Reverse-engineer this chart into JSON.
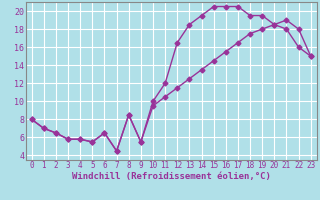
{
  "xlabel": "Windchill (Refroidissement éolien,°C)",
  "background_color": "#b0e0e8",
  "grid_color": "#ffffff",
  "line_color": "#993399",
  "marker": "D",
  "markersize": 2.5,
  "linewidth": 1.0,
  "xlim": [
    -0.5,
    23.5
  ],
  "ylim": [
    3.5,
    21.0
  ],
  "xticks": [
    0,
    1,
    2,
    3,
    4,
    5,
    6,
    7,
    8,
    9,
    10,
    11,
    12,
    13,
    14,
    15,
    16,
    17,
    18,
    19,
    20,
    21,
    22,
    23
  ],
  "yticks": [
    4,
    6,
    8,
    10,
    12,
    14,
    16,
    18,
    20
  ],
  "curve1_x": [
    0,
    1,
    2,
    3,
    4,
    5,
    6,
    7,
    8,
    9,
    10,
    11,
    12,
    13,
    14,
    15,
    16,
    17,
    18,
    19,
    20,
    21,
    22,
    23
  ],
  "curve1_y": [
    8.0,
    7.0,
    6.5,
    5.8,
    5.8,
    5.5,
    6.5,
    4.5,
    8.5,
    5.5,
    10.0,
    12.0,
    16.5,
    18.5,
    19.5,
    20.5,
    20.5,
    20.5,
    19.5,
    19.5,
    18.5,
    18.0,
    16.0,
    15.0
  ],
  "curve2_x": [
    0,
    1,
    2,
    3,
    4,
    5,
    6,
    7,
    8,
    9,
    10,
    11,
    12,
    13,
    14,
    15,
    16,
    17,
    18,
    19,
    20,
    21,
    22,
    23
  ],
  "curve2_y": [
    8.0,
    7.0,
    6.5,
    5.8,
    5.8,
    5.5,
    6.5,
    4.5,
    8.5,
    5.5,
    9.5,
    10.5,
    11.5,
    12.5,
    13.5,
    14.5,
    15.5,
    16.5,
    17.5,
    18.0,
    18.5,
    19.0,
    18.0,
    15.0
  ]
}
